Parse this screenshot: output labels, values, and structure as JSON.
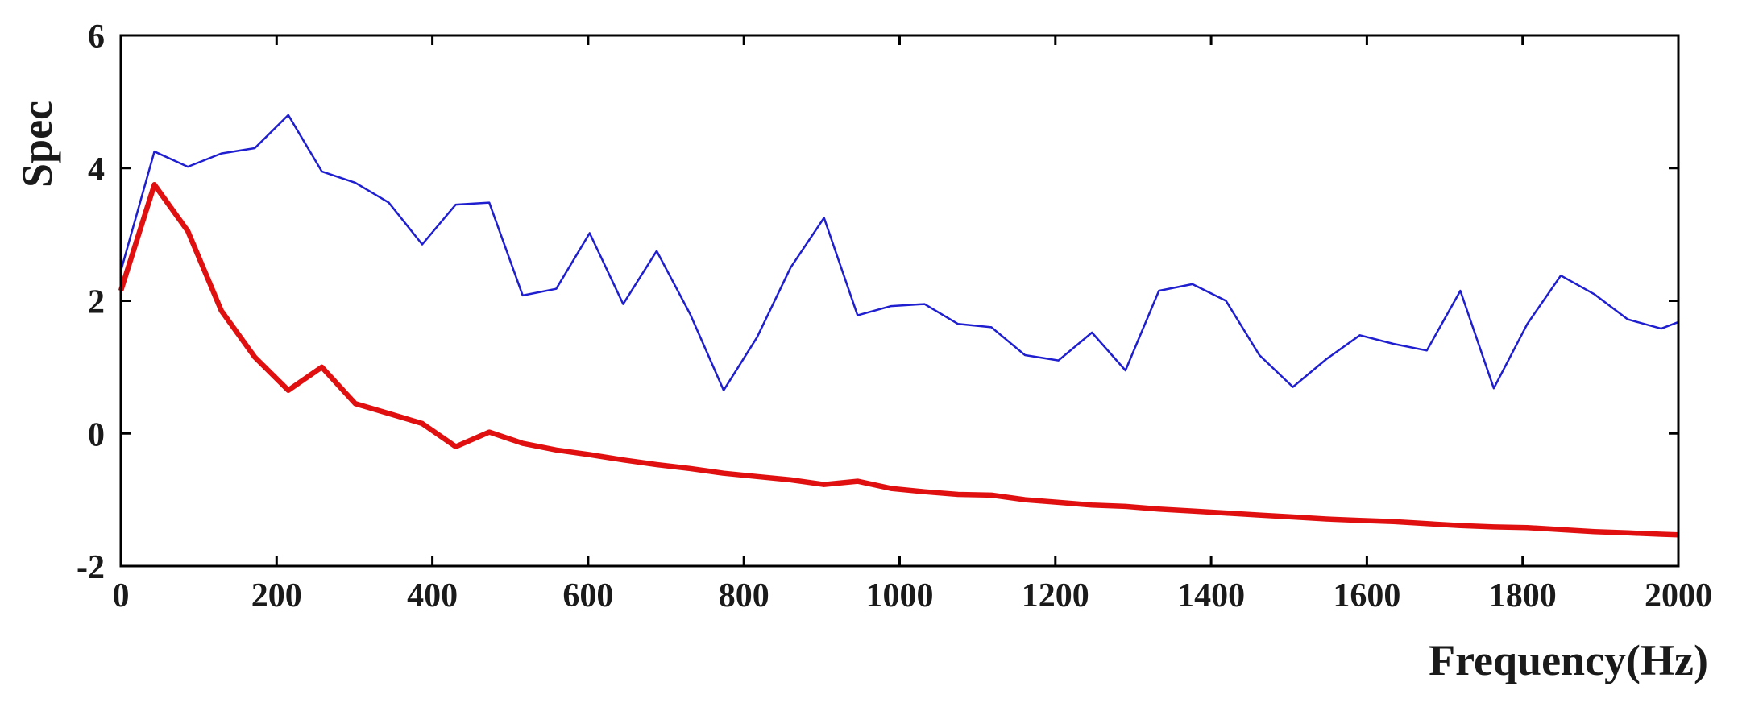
{
  "chart_data": {
    "type": "line",
    "title": "",
    "xlabel": "Frequency(Hz)",
    "ylabel": "Spec",
    "xlim": [
      0,
      2000
    ],
    "ylim": [
      -2,
      6
    ],
    "xticks": [
      0,
      200,
      400,
      600,
      800,
      1000,
      1200,
      1400,
      1600,
      1800,
      2000
    ],
    "yticks": [
      -2,
      0,
      2,
      4,
      6
    ],
    "grid": false,
    "series": [
      {
        "color": "#1f1fd0",
        "line_width": "thin",
        "points": [
          [
            0,
            2.45
          ],
          [
            43,
            4.25
          ],
          [
            86,
            4.02
          ],
          [
            129,
            4.22
          ],
          [
            172,
            4.3
          ],
          [
            215,
            4.8
          ],
          [
            258,
            3.95
          ],
          [
            301,
            3.78
          ],
          [
            344,
            3.48
          ],
          [
            387,
            2.85
          ],
          [
            430,
            3.45
          ],
          [
            473,
            3.48
          ],
          [
            516,
            2.08
          ],
          [
            559,
            2.18
          ],
          [
            602,
            3.02
          ],
          [
            645,
            1.95
          ],
          [
            688,
            2.75
          ],
          [
            731,
            1.8
          ],
          [
            774,
            0.65
          ],
          [
            817,
            1.45
          ],
          [
            860,
            2.5
          ],
          [
            903,
            3.25
          ],
          [
            946,
            1.78
          ],
          [
            989,
            1.92
          ],
          [
            1032,
            1.95
          ],
          [
            1075,
            1.65
          ],
          [
            1118,
            1.6
          ],
          [
            1161,
            1.18
          ],
          [
            1204,
            1.1
          ],
          [
            1247,
            1.52
          ],
          [
            1290,
            0.95
          ],
          [
            1333,
            2.15
          ],
          [
            1376,
            2.25
          ],
          [
            1419,
            2.0
          ],
          [
            1462,
            1.18
          ],
          [
            1505,
            0.7
          ],
          [
            1548,
            1.12
          ],
          [
            1591,
            1.48
          ],
          [
            1634,
            1.35
          ],
          [
            1677,
            1.25
          ],
          [
            1720,
            2.15
          ],
          [
            1763,
            0.68
          ],
          [
            1806,
            1.65
          ],
          [
            1849,
            2.38
          ],
          [
            1892,
            2.1
          ],
          [
            1935,
            1.72
          ],
          [
            1978,
            1.58
          ],
          [
            2000,
            1.68
          ]
        ]
      },
      {
        "color": "#e01010",
        "line_width": "thick",
        "points": [
          [
            0,
            2.15
          ],
          [
            43,
            3.75
          ],
          [
            86,
            3.05
          ],
          [
            129,
            1.85
          ],
          [
            172,
            1.15
          ],
          [
            215,
            0.65
          ],
          [
            258,
            1.0
          ],
          [
            301,
            0.45
          ],
          [
            344,
            0.3
          ],
          [
            387,
            0.15
          ],
          [
            430,
            -0.2
          ],
          [
            473,
            0.02
          ],
          [
            516,
            -0.15
          ],
          [
            559,
            -0.25
          ],
          [
            602,
            -0.32
          ],
          [
            645,
            -0.4
          ],
          [
            688,
            -0.47
          ],
          [
            731,
            -0.53
          ],
          [
            774,
            -0.6
          ],
          [
            817,
            -0.65
          ],
          [
            860,
            -0.7
          ],
          [
            903,
            -0.77
          ],
          [
            946,
            -0.72
          ],
          [
            989,
            -0.83
          ],
          [
            1032,
            -0.88
          ],
          [
            1075,
            -0.92
          ],
          [
            1118,
            -0.93
          ],
          [
            1161,
            -1.0
          ],
          [
            1204,
            -1.04
          ],
          [
            1247,
            -1.08
          ],
          [
            1290,
            -1.1
          ],
          [
            1333,
            -1.14
          ],
          [
            1376,
            -1.17
          ],
          [
            1419,
            -1.2
          ],
          [
            1462,
            -1.23
          ],
          [
            1505,
            -1.26
          ],
          [
            1548,
            -1.29
          ],
          [
            1591,
            -1.31
          ],
          [
            1634,
            -1.33
          ],
          [
            1677,
            -1.36
          ],
          [
            1720,
            -1.39
          ],
          [
            1763,
            -1.41
          ],
          [
            1806,
            -1.42
          ],
          [
            1849,
            -1.45
          ],
          [
            1892,
            -1.48
          ],
          [
            1935,
            -1.5
          ],
          [
            1978,
            -1.52
          ],
          [
            2000,
            -1.53
          ]
        ]
      }
    ]
  }
}
